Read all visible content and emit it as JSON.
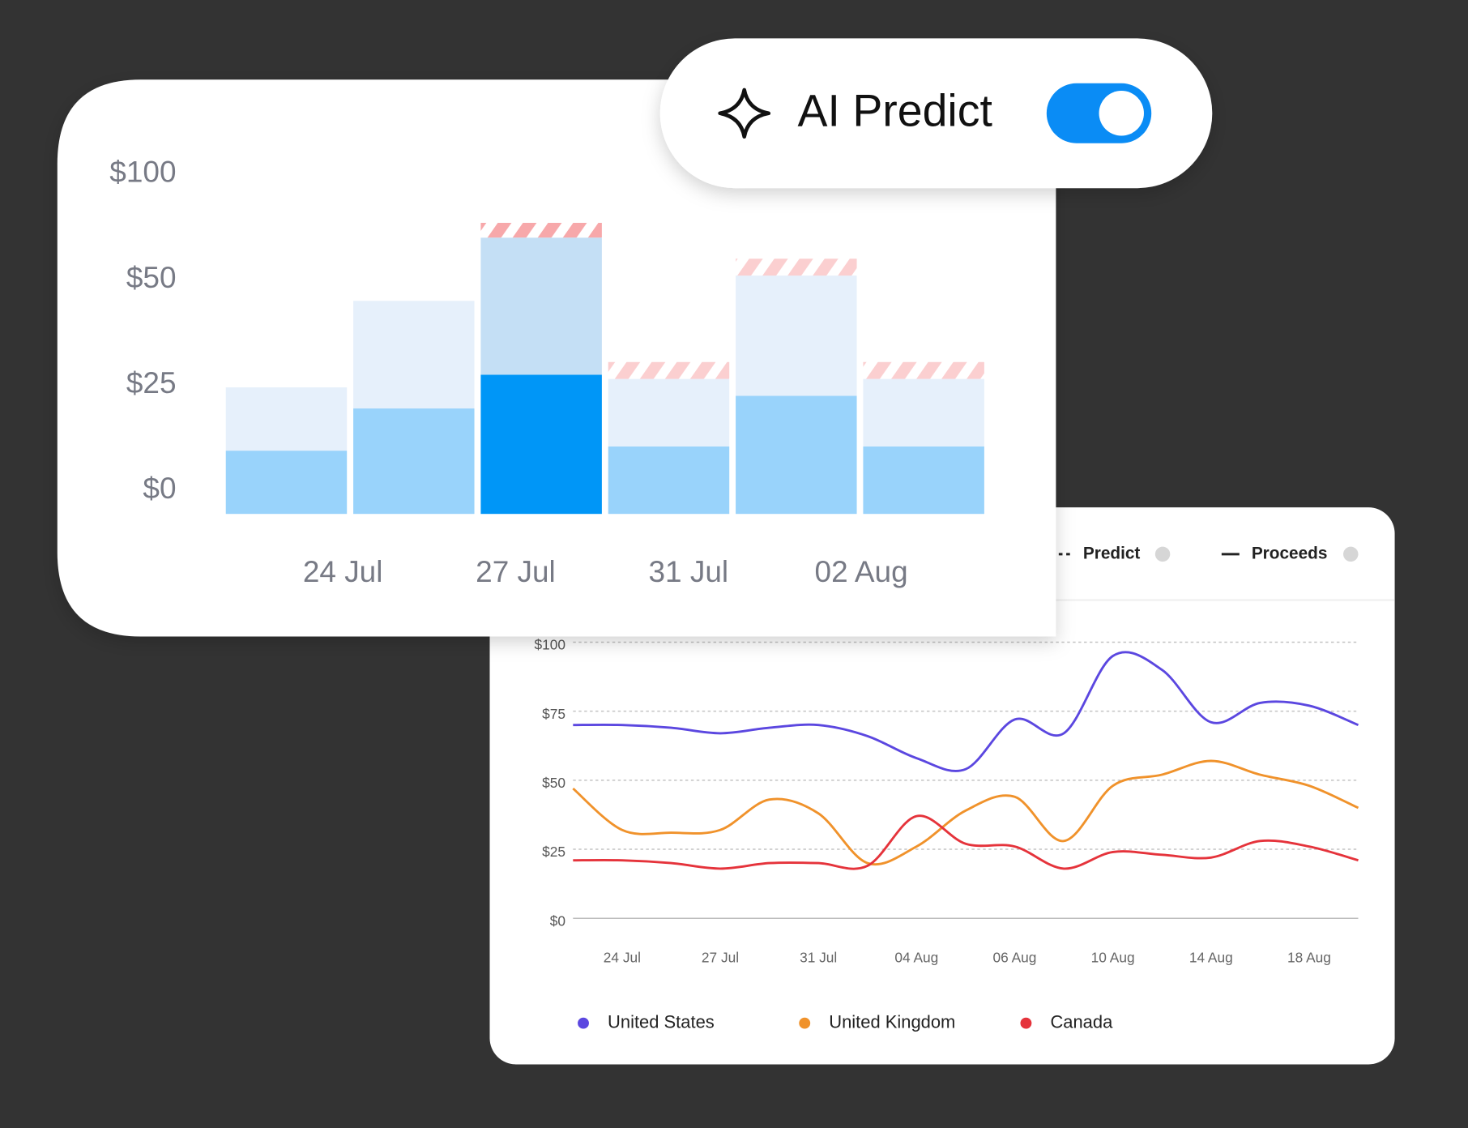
{
  "toggle": {
    "label": "AI Predict",
    "on": true
  },
  "chart_data": [
    {
      "type": "bar",
      "yticks": [
        {
          "value": 0,
          "label": "$0"
        },
        {
          "value": 25,
          "label": "$25"
        },
        {
          "value": 50,
          "label": "$50"
        },
        {
          "value": 100,
          "label": "$100"
        }
      ],
      "x_labels": [
        "24 Jul",
        "27 Jul",
        "31 Jul",
        "02 Aug"
      ],
      "series": [
        {
          "color": "#99d3fb",
          "values": [
            15,
            25,
            33,
            16,
            28,
            16
          ]
        },
        {
          "color": "#e6f0fb",
          "values": [
            15,
            26,
            48,
            16,
            35,
            16
          ]
        },
        {
          "color": "#f7a8aa",
          "pattern": "hatch",
          "values": [
            null,
            null,
            7,
            4,
            8,
            4
          ]
        }
      ],
      "highlight": {
        "index": 2,
        "colors": [
          "#0096f7",
          "#c4dff5"
        ]
      },
      "grid": false
    },
    {
      "type": "line",
      "line_styles": [
        {
          "name": "Predict",
          "dash": true
        },
        {
          "name": "Proceeds",
          "dash": false
        }
      ],
      "categories": [
        null,
        "24 Jul",
        null,
        "27 Jul",
        null,
        "31 Jul",
        null,
        "04 Aug",
        null,
        "06 Aug",
        null,
        "10 Aug",
        null,
        "14 Aug",
        null,
        "18 Aug",
        null
      ],
      "ylim": [
        0,
        100
      ],
      "yticks": [
        {
          "value": 0,
          "label": "$0"
        },
        {
          "value": 25,
          "label": "$25"
        },
        {
          "value": 50,
          "label": "$50"
        },
        {
          "value": 75,
          "label": "$75"
        },
        {
          "value": 100,
          "label": "$100"
        }
      ],
      "grid": true,
      "series": [
        {
          "name": "United States",
          "color": "#5b47e0",
          "values": [
            70,
            70,
            69,
            67,
            69,
            70,
            66,
            58,
            54,
            72,
            67,
            95,
            90,
            71,
            78,
            77,
            70
          ]
        },
        {
          "name": "United Kingdom",
          "color": "#f0922b",
          "values": [
            47,
            32,
            31,
            32,
            43,
            38,
            20,
            26,
            39,
            44,
            28,
            48,
            52,
            57,
            52,
            48,
            40
          ]
        },
        {
          "name": "Canada",
          "color": "#e5333b",
          "values": [
            21,
            21,
            20,
            18,
            20,
            20,
            19,
            37,
            27,
            26,
            18,
            24,
            23,
            22,
            28,
            26,
            21
          ]
        }
      ]
    }
  ]
}
